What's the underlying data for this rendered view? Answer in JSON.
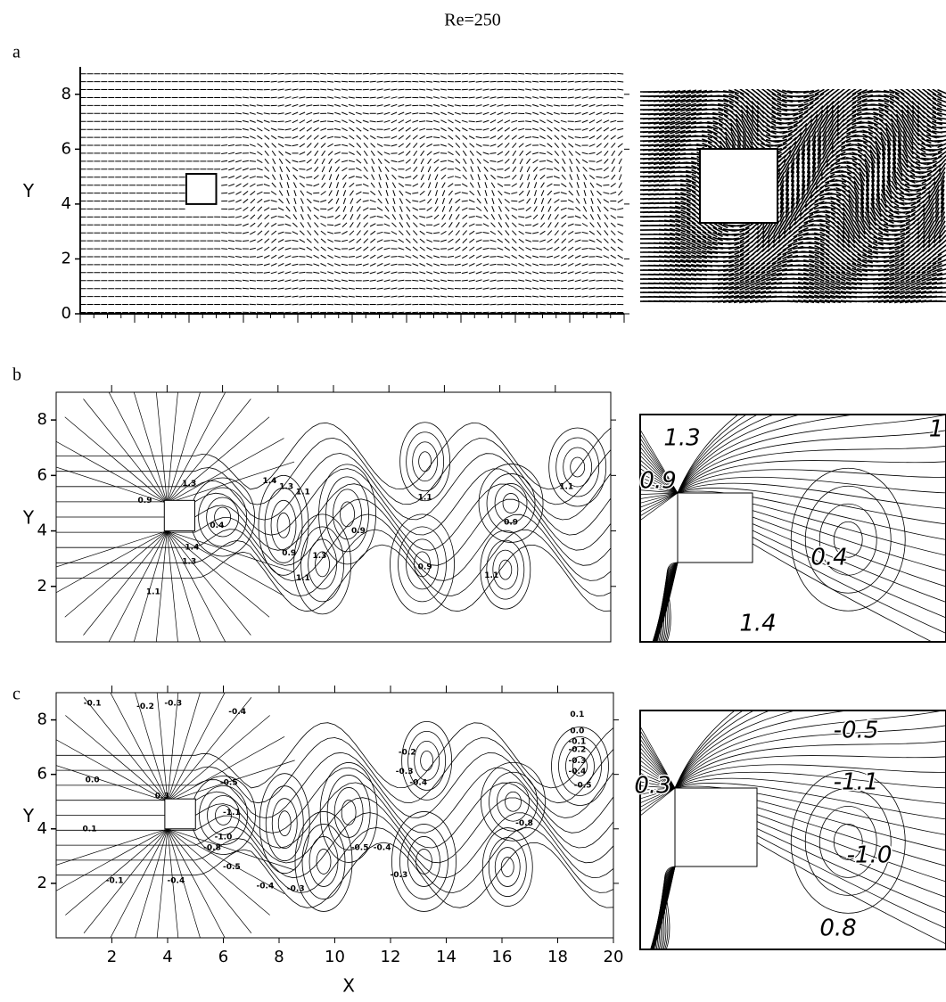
{
  "title": "Re=250",
  "chart_data": [
    {
      "panel": "a",
      "type": "vector",
      "ylabel": "Y",
      "ylim": [
        0,
        9
      ],
      "yticks": [
        0,
        2,
        4,
        6,
        8
      ],
      "xlim": [
        0,
        20
      ]
    },
    {
      "panel": "b",
      "type": "contour",
      "ylabel": "Y",
      "ylim": [
        0,
        9
      ],
      "yticks": [
        2,
        4,
        6,
        8
      ],
      "xlim": [
        0,
        20
      ],
      "contour_labels": [
        "0.9",
        "1.3",
        "1.4",
        "1.3",
        "1.1",
        "0.4",
        "1.4",
        "1.3",
        "1.1",
        "0.9",
        "1.3",
        "1.1",
        "0.9",
        "1.1",
        "0.9",
        "1.1",
        "0.9",
        "1.1"
      ],
      "inset_labels": [
        "1.3",
        "0.9",
        "0.4",
        "1.4",
        "1"
      ]
    },
    {
      "panel": "c",
      "type": "contour",
      "ylabel": "Y",
      "xlabel": "X",
      "ylim": [
        0,
        9
      ],
      "yticks": [
        2,
        4,
        6,
        8
      ],
      "xlim": [
        0,
        20
      ],
      "xticks": [
        2,
        4,
        6,
        8,
        10,
        12,
        14,
        16,
        18,
        20
      ],
      "contour_labels": [
        "-0.1",
        "-0.2",
        "-0.3",
        "-0.4",
        "0.0",
        "0.3",
        "-0.5",
        "-1.1",
        "-1.0",
        "-0.8",
        "-0.5",
        "0.1",
        "-0.1",
        "-0.4",
        "-0.4",
        "-0.3",
        "-0.2",
        "-0.3",
        "-0.4",
        "-0.5",
        "-0.4",
        "-0.3",
        "-0.8",
        "0.1",
        "0.0",
        "-0.1",
        "-0.2",
        "-0.3",
        "-0.4",
        "-0.5"
      ],
      "inset_labels": [
        "-0.5",
        "0.3",
        "-1.1",
        "-1.0",
        "0.8"
      ]
    }
  ]
}
